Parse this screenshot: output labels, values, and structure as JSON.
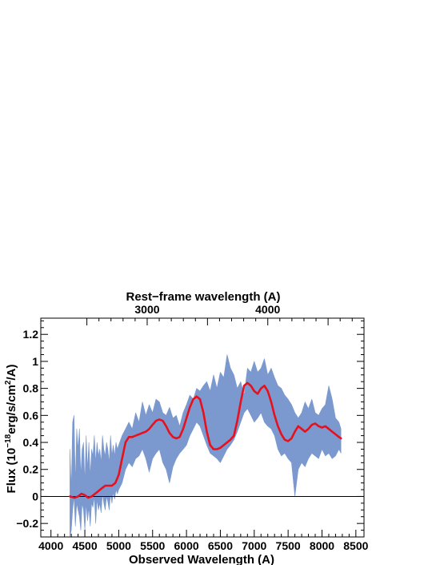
{
  "chart_data": {
    "type": "line",
    "top_axis_title": "Rest−frame wavelength (A)",
    "xlabel": "Observed Wavelength (A)",
    "ylabel_main": "Flux (10",
    "ylabel_exp1": "−18",
    "ylabel_mid": "erg/s/cm",
    "ylabel_exp2": "2",
    "ylabel_end": "/A)",
    "xlim": [
      3850,
      8620
    ],
    "ylim": [
      -0.3,
      1.32
    ],
    "x_ticks": [
      4000,
      4500,
      5000,
      5500,
      6000,
      6500,
      7000,
      7500,
      8000,
      8500
    ],
    "x_tick_labels": [
      "4000",
      "4500",
      "5000",
      "5500",
      "6000",
      "6500",
      "7000",
      "7500",
      "8000",
      "8500"
    ],
    "y_ticks": [
      -0.2,
      0,
      0.2,
      0.4,
      0.6,
      0.8,
      1,
      1.2
    ],
    "y_tick_labels": [
      "−0.2",
      "0",
      "0.2",
      "0.4",
      "0.6",
      "0.8",
      "1",
      "1.2"
    ],
    "top_ticks": [
      {
        "observed": 5000,
        "label": ""
      },
      {
        "observed": 5610,
        "label": "3000"
      },
      {
        "observed": 7480,
        "label": "4000"
      }
    ],
    "top_tick_labels_pos": [
      {
        "observed": 5420,
        "label": "3000"
      },
      {
        "observed": 7200,
        "label": "4000"
      }
    ],
    "zero_line": 0,
    "colors": {
      "spectrum_band": "#7b99cf",
      "model": "#e8101c",
      "axis": "#000000"
    },
    "series": [
      {
        "kind": "band",
        "x": [
          4280,
          4300,
          4320,
          4340,
          4360,
          4380,
          4400,
          4420,
          4440,
          4460,
          4480,
          4500,
          4520,
          4540,
          4560,
          4580,
          4600,
          4620,
          4640,
          4660,
          4680,
          4700,
          4720,
          4740,
          4760,
          4780,
          4800,
          4820,
          4840,
          4860,
          4880,
          4900,
          4920,
          4940,
          4960,
          4980,
          5000,
          5050,
          5100,
          5150,
          5200,
          5250,
          5300,
          5350,
          5400,
          5450,
          5500,
          5550,
          5600,
          5650,
          5700,
          5750,
          5800,
          5850,
          5900,
          5950,
          6000,
          6050,
          6100,
          6150,
          6200,
          6250,
          6300,
          6350,
          6400,
          6450,
          6500,
          6550,
          6600,
          6650,
          6700,
          6750,
          6800,
          6850,
          6900,
          6950,
          7000,
          7050,
          7100,
          7150,
          7200,
          7250,
          7300,
          7350,
          7400,
          7450,
          7500,
          7550,
          7600,
          7650,
          7700,
          7750,
          7800,
          7850,
          7900,
          7950,
          8000,
          8050,
          8100,
          8150,
          8200,
          8250,
          8280
        ],
        "upper": [
          0.35,
          0.05,
          0.55,
          0.6,
          0.1,
          0.5,
          0.35,
          0.5,
          0.15,
          0.35,
          0.4,
          0.1,
          0.45,
          0.2,
          0.4,
          0.15,
          0.35,
          0.3,
          0.45,
          0.25,
          0.4,
          0.3,
          0.35,
          0.25,
          0.45,
          0.35,
          0.3,
          0.4,
          0.35,
          0.25,
          0.45,
          0.3,
          0.38,
          0.3,
          0.4,
          0.35,
          0.38,
          0.45,
          0.5,
          0.55,
          0.5,
          0.62,
          0.55,
          0.7,
          0.6,
          0.68,
          0.62,
          0.72,
          0.7,
          0.62,
          0.6,
          0.66,
          0.58,
          0.6,
          0.52,
          0.62,
          0.68,
          0.75,
          0.72,
          0.8,
          0.78,
          0.82,
          0.85,
          0.78,
          0.9,
          0.8,
          0.92,
          0.88,
          1.05,
          0.95,
          0.9,
          0.8,
          0.85,
          0.75,
          0.95,
          0.92,
          1.0,
          0.92,
          0.95,
          1.02,
          0.9,
          0.95,
          0.88,
          0.82,
          0.8,
          0.75,
          0.72,
          0.68,
          0.62,
          0.58,
          0.62,
          0.7,
          0.65,
          0.72,
          0.62,
          0.6,
          0.65,
          0.68,
          0.82,
          0.72,
          0.58,
          0.55,
          0.5
        ],
        "lower": [
          -0.3,
          -0.25,
          -0.1,
          0.0,
          -0.22,
          -0.05,
          -0.1,
          -0.15,
          -0.25,
          -0.05,
          -0.1,
          -0.25,
          -0.05,
          -0.18,
          -0.08,
          -0.22,
          -0.05,
          -0.08,
          0.0,
          -0.2,
          -0.02,
          -0.1,
          -0.05,
          -0.12,
          0.02,
          -0.05,
          -0.1,
          0.0,
          -0.04,
          -0.1,
          0.02,
          -0.05,
          0.03,
          -0.02,
          0.05,
          0.02,
          0.05,
          0.1,
          0.2,
          0.25,
          0.22,
          0.28,
          0.3,
          0.35,
          0.28,
          0.18,
          0.28,
          0.32,
          0.35,
          0.25,
          0.2,
          0.1,
          0.22,
          0.28,
          0.32,
          0.35,
          0.38,
          0.45,
          0.5,
          0.55,
          0.52,
          0.45,
          0.38,
          0.32,
          0.3,
          0.28,
          0.25,
          0.3,
          0.35,
          0.38,
          0.42,
          0.48,
          0.55,
          0.62,
          0.65,
          0.6,
          0.55,
          0.58,
          0.62,
          0.55,
          0.52,
          0.5,
          0.45,
          0.35,
          0.3,
          0.32,
          0.28,
          0.25,
          0.0,
          0.2,
          0.25,
          0.22,
          0.28,
          0.32,
          0.3,
          0.28,
          0.35,
          0.3,
          0.32,
          0.28,
          0.3,
          0.35,
          0.32
        ]
      },
      {
        "kind": "line",
        "x": [
          4280,
          4350,
          4400,
          4450,
          4500,
          4550,
          4600,
          4650,
          4700,
          4750,
          4800,
          4850,
          4900,
          4950,
          5000,
          5050,
          5100,
          5150,
          5200,
          5250,
          5300,
          5350,
          5400,
          5450,
          5500,
          5550,
          5600,
          5650,
          5700,
          5750,
          5800,
          5850,
          5900,
          5950,
          6000,
          6050,
          6100,
          6150,
          6200,
          6250,
          6300,
          6350,
          6400,
          6450,
          6500,
          6550,
          6600,
          6650,
          6700,
          6750,
          6800,
          6850,
          6900,
          6950,
          7000,
          7050,
          7100,
          7150,
          7200,
          7250,
          7300,
          7350,
          7400,
          7450,
          7500,
          7550,
          7600,
          7650,
          7700,
          7750,
          7800,
          7850,
          7900,
          7950,
          8000,
          8050,
          8100,
          8150,
          8200,
          8250,
          8280
        ],
        "y": [
          0.0,
          -0.01,
          0.0,
          0.02,
          0.01,
          -0.01,
          0.0,
          0.02,
          0.04,
          0.06,
          0.08,
          0.08,
          0.08,
          0.1,
          0.16,
          0.28,
          0.4,
          0.44,
          0.44,
          0.45,
          0.46,
          0.47,
          0.48,
          0.5,
          0.53,
          0.56,
          0.57,
          0.56,
          0.52,
          0.47,
          0.44,
          0.43,
          0.44,
          0.5,
          0.58,
          0.66,
          0.72,
          0.74,
          0.72,
          0.62,
          0.48,
          0.38,
          0.35,
          0.35,
          0.36,
          0.38,
          0.4,
          0.42,
          0.45,
          0.56,
          0.7,
          0.82,
          0.84,
          0.82,
          0.78,
          0.76,
          0.8,
          0.82,
          0.78,
          0.7,
          0.6,
          0.52,
          0.46,
          0.42,
          0.41,
          0.43,
          0.48,
          0.52,
          0.5,
          0.48,
          0.5,
          0.53,
          0.54,
          0.52,
          0.51,
          0.52,
          0.5,
          0.48,
          0.46,
          0.44,
          0.43
        ]
      }
    ]
  }
}
